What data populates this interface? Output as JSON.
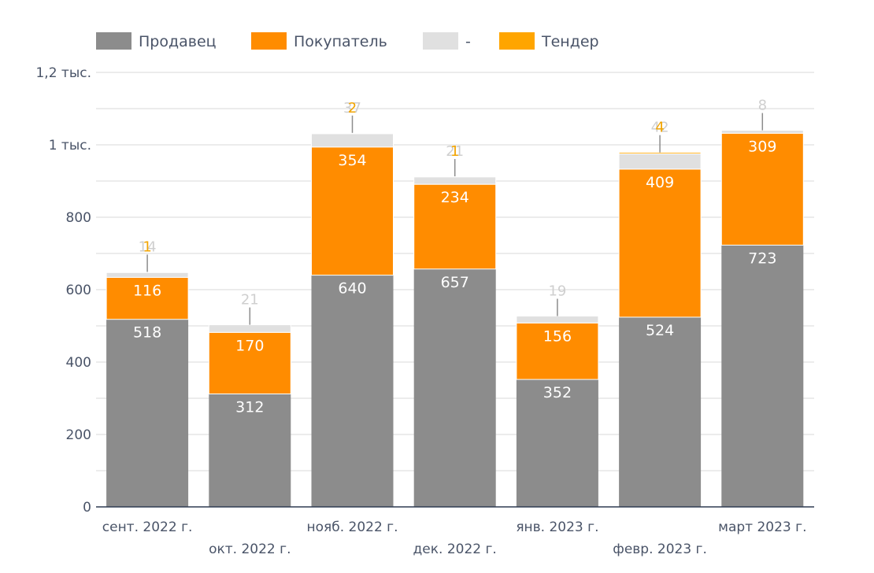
{
  "chart_data": {
    "type": "bar",
    "stacked": true,
    "categories": [
      "сент. 2022 г.",
      "окт. 2022 г.",
      "нояб. 2022 г.",
      "дек. 2022 г.",
      "янв. 2023 г.",
      "февр. 2023 г.",
      "март 2023 г."
    ],
    "series": [
      {
        "name": "Продавец",
        "color": "#8c8c8c",
        "values": [
          518,
          312,
          640,
          657,
          352,
          524,
          723
        ]
      },
      {
        "name": "Покупатель",
        "color": "#ff8c00",
        "values": [
          116,
          170,
          354,
          234,
          156,
          409,
          309
        ]
      },
      {
        "name": "-",
        "color": "#e0e0e0",
        "values": [
          14,
          21,
          37,
          21,
          19,
          42,
          8
        ]
      },
      {
        "name": "Тендер",
        "color": "#ffa500",
        "values": [
          1,
          0,
          2,
          1,
          0,
          4,
          0
        ]
      }
    ],
    "y_ticks": [
      {
        "value": 0,
        "label": "0"
      },
      {
        "value": 200,
        "label": "200"
      },
      {
        "value": 400,
        "label": "400"
      },
      {
        "value": 600,
        "label": "600"
      },
      {
        "value": 800,
        "label": "800"
      },
      {
        "value": 1000,
        "label": "1 тыс."
      },
      {
        "value": 1200,
        "label": "1,2 тыс."
      }
    ],
    "ylim": [
      0,
      1200
    ],
    "minor_step": 100,
    "grid": true,
    "legend_position": "top-left",
    "title": "",
    "xlabel": "",
    "ylabel": ""
  }
}
